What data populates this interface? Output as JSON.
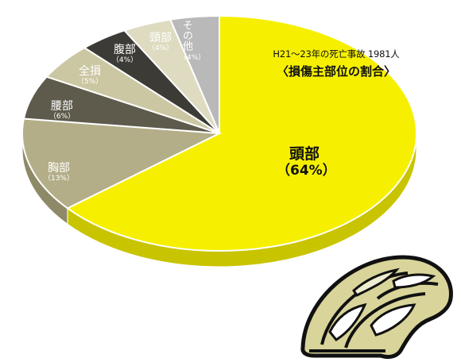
{
  "caption": {
    "subtitle": "H21〜23年の死亡事故 1981人",
    "title": "〈損傷主部位の割合〉"
  },
  "chart_data": {
    "type": "pie",
    "title": "〈損傷主部位の割合〉",
    "subtitle": "H21〜23年の死亡事故 1981人",
    "style": "3d",
    "slices": [
      {
        "label": "頭部",
        "value": 64,
        "display": "（64%）",
        "color": "#f6f000",
        "side": "#c9c400"
      },
      {
        "label": "胸部",
        "value": 13,
        "display": "（13%）",
        "color": "#b3ae88",
        "side": "#8e8a68"
      },
      {
        "label": "腰部",
        "value": 6,
        "display": "（6%）",
        "color": "#5e5b4c",
        "side": "#46443a"
      },
      {
        "label": "全損",
        "value": 5,
        "display": "（5%）",
        "color": "#cbc7a2",
        "side": "#a7a484"
      },
      {
        "label": "腹部",
        "value": 4,
        "display": "（4%）",
        "color": "#3c3b36",
        "side": "#2b2a26"
      },
      {
        "label": "頸部",
        "value": 4,
        "display": "（4%）",
        "color": "#dedbc0",
        "side": "#bdbaa0"
      },
      {
        "label": "その他",
        "value": 4,
        "display": "（4%）",
        "color": "#b9b9b9",
        "side": "#969696"
      }
    ]
  }
}
